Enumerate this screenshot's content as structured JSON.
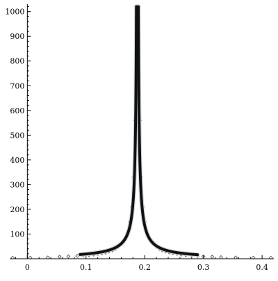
{
  "chart_data": {
    "type": "scatter",
    "title": "",
    "xlabel": "",
    "ylabel": "",
    "xlim": [
      -0.03,
      0.42
    ],
    "ylim": [
      0,
      1030
    ],
    "x_ticks": [
      "0",
      "0.1",
      "0.2",
      "0.3",
      "0.4"
    ],
    "x_tick_values": [
      0,
      0.1,
      0.2,
      0.3,
      0.4
    ],
    "y_ticks": [
      "100",
      "200",
      "300",
      "400",
      "500",
      "600",
      "700",
      "800",
      "900",
      "1000"
    ],
    "y_tick_values": [
      100,
      200,
      300,
      400,
      500,
      600,
      700,
      800,
      900,
      1000
    ],
    "grid": false,
    "legend": "none",
    "colors": {
      "curve": "#111111",
      "marker": "#555555",
      "axis": "#000000"
    },
    "curve": {
      "description_free": true,
      "peak_x": 0.1875,
      "peak_y": 1020,
      "amplitude": 1.68
    },
    "markers": {
      "x": [
        -0.025,
        0.005,
        0.035,
        0.055,
        0.07,
        0.085,
        0.095,
        0.105,
        0.113,
        0.12,
        0.127,
        0.133,
        0.139,
        0.145,
        0.15,
        0.155,
        0.16,
        0.164,
        0.168,
        0.172,
        0.175,
        0.178,
        0.181,
        0.183,
        0.185,
        0.19,
        0.192,
        0.194,
        0.197,
        0.2,
        0.203,
        0.207,
        0.211,
        0.215,
        0.22,
        0.225,
        0.23,
        0.236,
        0.242,
        0.248,
        0.255,
        0.262,
        0.27,
        0.28,
        0.29,
        0.3,
        0.315,
        0.33,
        0.355,
        0.385,
        0.415
      ],
      "y": [
        4,
        4,
        5,
        8,
        9,
        11,
        13,
        15,
        17,
        20,
        22,
        25,
        29,
        34,
        40,
        48,
        59,
        71,
        88,
        115,
        150,
        210,
        330,
        560,
        1020,
        1020,
        560,
        330,
        210,
        150,
        115,
        88,
        71,
        59,
        48,
        40,
        34,
        29,
        25,
        22,
        20,
        17,
        15,
        13,
        11,
        9,
        8,
        6,
        5,
        4,
        4
      ]
    }
  }
}
